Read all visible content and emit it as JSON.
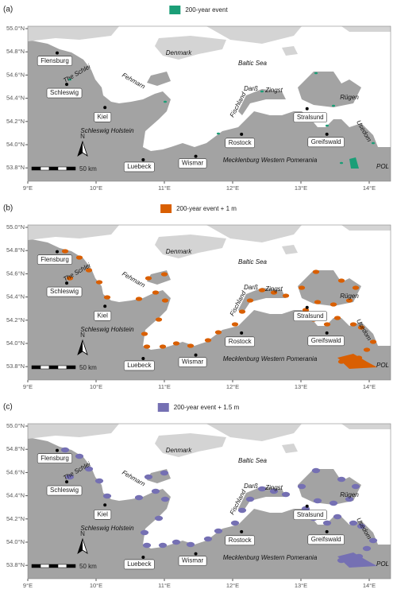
{
  "panels": [
    {
      "label": "(a)",
      "legend": "200-year event",
      "color": "#1b9e77"
    },
    {
      "label": "(b)",
      "legend": "200-year event + 1 m",
      "color": "#d95f02"
    },
    {
      "label": "(c)",
      "legend": "200-year event + 1.5 m",
      "color": "#7570b3"
    }
  ],
  "x_ticks": [
    "9°E",
    "10°E",
    "11°E",
    "12°E",
    "13°E",
    "14°E"
  ],
  "y_ticks": [
    "55.0°N",
    "54.8°N",
    "54.6°N",
    "54.4°N",
    "54.2°N",
    "54.0°N",
    "53.8°N"
  ],
  "cities": [
    "Flensburg",
    "Schleswig",
    "Kiel",
    "Luebeck",
    "Wismar",
    "Rostock",
    "Stralsund",
    "Greifswald"
  ],
  "places": [
    "Denmark",
    "Baltic Sea",
    "Fehmarn",
    "The Schlei",
    "Schleswig Holstein",
    "Darß",
    "Zingst",
    "Fischland",
    "Rügen",
    "Usedom",
    "Mecklenburg Western Pomerania",
    "POL"
  ],
  "scale_bar": "50 km",
  "north": "N"
}
